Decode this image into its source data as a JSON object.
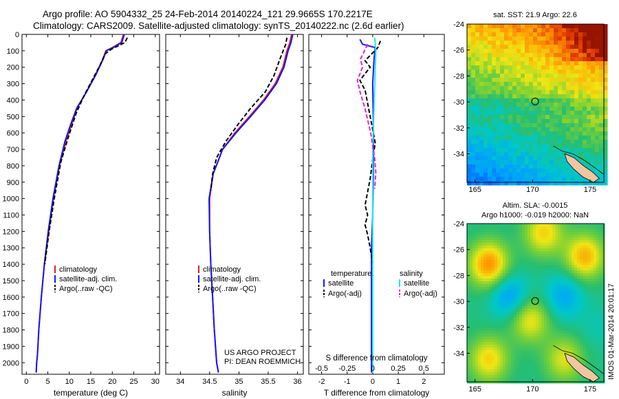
{
  "header": {
    "title_line1": "Argo profile: AO 5904332_25 24-Feb-2014 20140224_121 29.9665S 170.2217E",
    "title_line2": "Climatology: CARS2009. Satellite-adjusted climatology: synTS_20140222.nc (2.6d earlier)"
  },
  "colors": {
    "climatology": "#e02020",
    "satellite": "#1515ff",
    "argo": "#000000",
    "salinity_satellite": "#22e5ee",
    "salinity_argo": "#e020e0"
  },
  "chart_data": [
    {
      "type": "line",
      "id": "temperature",
      "xlabel": "temperature (deg C)",
      "xlim": [
        -1,
        31
      ],
      "xticks": [
        0,
        5,
        10,
        15,
        20,
        25,
        30
      ],
      "ylim": [
        2070,
        0
      ],
      "yticks": [
        0,
        100,
        200,
        300,
        400,
        500,
        600,
        700,
        800,
        900,
        1000,
        1100,
        1200,
        1300,
        1400,
        1500,
        1600,
        1700,
        1800,
        1900,
        2000
      ],
      "legend": [
        "climatology",
        "satellite-adj. clim.",
        "Argo(..raw -QC)"
      ],
      "series": [
        {
          "name": "climatology",
          "style": "solid",
          "color_key": "climatology",
          "x": [
            22.6,
            22.0,
            20.0,
            18.5,
            17.8,
            16.0,
            14.0,
            11.8,
            10.5,
            9.2,
            7.7,
            6.3,
            5.2,
            4.2,
            3.5,
            2.9,
            2.6,
            2.4,
            2.3
          ],
          "y": [
            0,
            50,
            80,
            100,
            150,
            250,
            350,
            450,
            550,
            650,
            800,
            1000,
            1200,
            1400,
            1600,
            1800,
            1950,
            2000,
            2060
          ]
        },
        {
          "name": "satellite-adj. clim.",
          "style": "solid",
          "color_key": "satellite",
          "x": [
            22.8,
            22.2,
            20.2,
            18.6,
            17.9,
            16.1,
            14.0,
            11.7,
            10.3,
            9.0,
            7.6,
            6.2,
            5.1,
            4.2,
            3.5,
            2.9,
            2.6,
            2.4,
            2.3
          ],
          "y": [
            0,
            50,
            80,
            100,
            150,
            250,
            350,
            450,
            550,
            650,
            800,
            1000,
            1200,
            1400,
            1600,
            1800,
            1950,
            2000,
            2060
          ]
        },
        {
          "name": "Argo(..raw -QC)",
          "style": "dashed",
          "color_key": "argo",
          "x": [
            23.5,
            22.9,
            19.8,
            18.3,
            17.3,
            15.5,
            13.3,
            11.6,
            10.6,
            9.6,
            8.0,
            6.5,
            5.3,
            4.3
          ],
          "y": [
            20,
            50,
            90,
            120,
            180,
            270,
            380,
            480,
            560,
            640,
            780,
            1000,
            1200,
            1400
          ]
        }
      ]
    },
    {
      "type": "line",
      "id": "salinity",
      "xlabel": "salinity",
      "xlim": [
        33.75,
        36.1
      ],
      "xticks": [
        34,
        34.5,
        35,
        35.5,
        36
      ],
      "ylim": [
        2070,
        0
      ],
      "legend": [
        "climatology",
        "satellite-adj. clim.",
        "Argo(..raw -QC)"
      ],
      "annotations": [
        "US ARGO PROJECT",
        "PI: DEAN ROEMMICH"
      ],
      "series": [
        {
          "name": "climatology",
          "style": "solid",
          "color_key": "climatology",
          "x": [
            35.9,
            35.87,
            35.82,
            35.75,
            35.62,
            35.42,
            35.18,
            34.93,
            34.72,
            34.56,
            34.5,
            34.5,
            34.52,
            34.55,
            34.58,
            34.62,
            34.65
          ],
          "y": [
            0,
            50,
            100,
            200,
            300,
            400,
            500,
            600,
            700,
            850,
            1000,
            1200,
            1400,
            1600,
            1800,
            2000,
            2060
          ]
        },
        {
          "name": "satellite-adj. clim.",
          "style": "solid",
          "color_key": "satellite",
          "x": [
            35.92,
            35.89,
            35.84,
            35.77,
            35.64,
            35.44,
            35.2,
            34.95,
            34.72,
            34.56,
            34.49,
            34.5,
            34.52,
            34.55,
            34.58,
            34.62,
            34.65
          ],
          "y": [
            0,
            50,
            100,
            200,
            300,
            400,
            500,
            600,
            700,
            850,
            1000,
            1200,
            1400,
            1600,
            1800,
            2000,
            2060
          ]
        },
        {
          "name": "Argo(..raw -QC)",
          "style": "dashed",
          "color_key": "argo",
          "x": [
            35.82,
            35.8,
            35.7,
            35.6,
            35.45,
            35.2,
            34.98,
            34.78,
            34.62,
            34.55,
            34.52
          ],
          "y": [
            20,
            60,
            150,
            250,
            350,
            450,
            550,
            650,
            750,
            850,
            950
          ]
        }
      ]
    },
    {
      "type": "line",
      "id": "differences",
      "xlabel": "T difference from climatology",
      "xlabel_secondary": "S difference from climatology",
      "xlim": [
        -2.5,
        2.8
      ],
      "xticks": [
        -2,
        -1,
        0,
        1,
        2
      ],
      "xticks_secondary": [
        -0.5,
        -0.25,
        0,
        0.25,
        0.5
      ],
      "ylim": [
        2070,
        0
      ],
      "legend_headers": [
        "temperature",
        "salinity"
      ],
      "legend": [
        "satellite",
        "Argo(-adj)",
        "satellite",
        "Argo(-adj)"
      ],
      "series": [
        {
          "name": "satellite",
          "group": "temperature",
          "style": "solid",
          "color_key": "satellite",
          "x": [
            -0.5,
            -0.4,
            0.1,
            0.05,
            0.0,
            0.02,
            0.03,
            0.02,
            0.0,
            -0.05,
            -0.05,
            -0.05,
            -0.05
          ],
          "y": [
            30,
            60,
            80,
            150,
            300,
            500,
            700,
            900,
            1100,
            1300,
            1600,
            1900,
            2060
          ]
        },
        {
          "name": "Argo(-adj)",
          "group": "temperature",
          "style": "dashed",
          "color_key": "argo",
          "x": [
            0.3,
            0.2,
            -0.3,
            -0.1,
            -0.5,
            -0.3,
            -0.2,
            -0.1,
            0.0,
            0.1,
            0.0,
            -0.1,
            -0.2,
            -0.3,
            -0.2,
            -0.3,
            -0.2,
            -0.1,
            0.0
          ],
          "y": [
            40,
            80,
            160,
            200,
            280,
            340,
            420,
            500,
            580,
            660,
            760,
            880,
            960,
            1040,
            1100,
            1160,
            1220,
            1300,
            1400
          ]
        },
        {
          "name": "satellite",
          "group": "salinity",
          "style": "solid",
          "color_key": "salinity_satellite",
          "x": [
            0.02,
            0.03,
            0.02,
            0.01,
            0.0,
            0.0,
            0.0,
            0.0,
            0.0,
            0.0
          ],
          "y": [
            20,
            100,
            300,
            500,
            700,
            900,
            1200,
            1500,
            1800,
            2060
          ]
        },
        {
          "name": "Argo(-adj)",
          "group": "salinity",
          "style": "dashed",
          "color_key": "salinity_argo",
          "x": [
            -0.05,
            -0.12,
            -0.1,
            -0.15,
            -0.12,
            -0.08,
            -0.05,
            -0.02,
            0.0,
            0.02,
            0.03,
            0.02
          ],
          "y": [
            60,
            150,
            200,
            280,
            360,
            440,
            520,
            600,
            680,
            760,
            840,
            940
          ]
        }
      ]
    },
    {
      "type": "heatmap",
      "id": "sst_map",
      "title": "sat. SST: 21.9 Argo: 22.6",
      "xlim": [
        164.3,
        176.2
      ],
      "ylim": [
        -36.2,
        -24
      ],
      "xticks": [
        165,
        170,
        175
      ],
      "yticks": [
        -24,
        -26,
        -28,
        -30,
        -32,
        -34
      ],
      "marker": {
        "lon": 170.2217,
        "lat": -29.9665
      }
    },
    {
      "type": "heatmap",
      "id": "sla_map",
      "title_line1": "Altim. SLA: -0.0015",
      "title_line2": "Argo h1000: -0.019 h2000: NaN",
      "xlim": [
        164.3,
        176.2
      ],
      "ylim": [
        -36.2,
        -24
      ],
      "xticks": [
        165,
        170,
        175
      ],
      "yticks": [
        -24,
        -26,
        -28,
        -30,
        -32,
        -34
      ],
      "marker": {
        "lon": 170.2217,
        "lat": -29.9665
      }
    }
  ],
  "footer": {
    "stamp": "IMOS 01-Mar-2014 20:01:17"
  }
}
